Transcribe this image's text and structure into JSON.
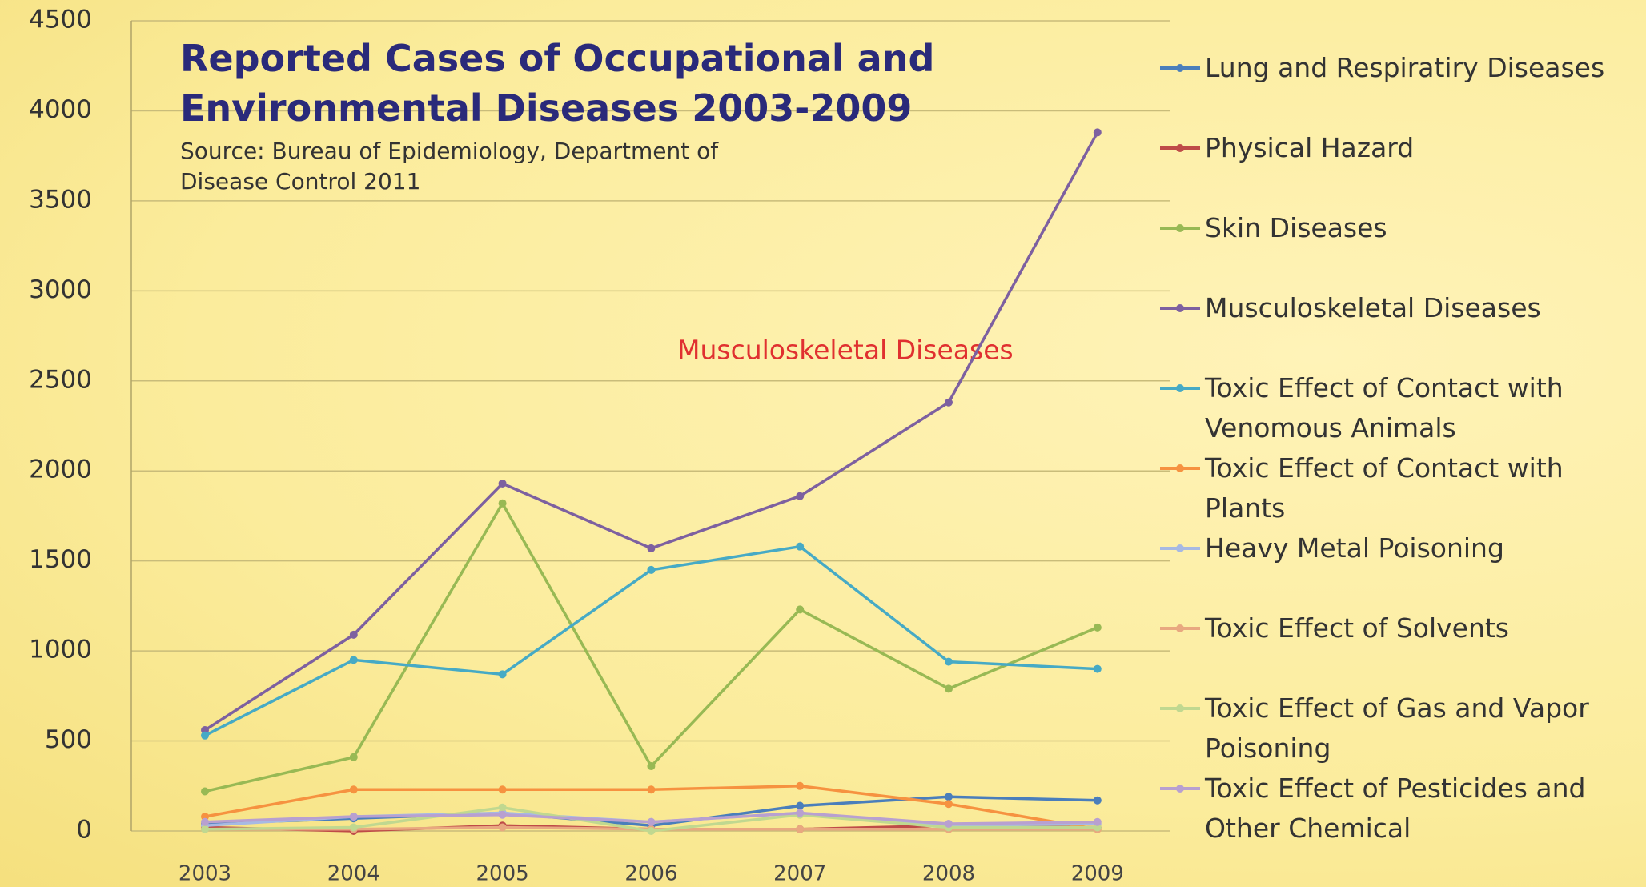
{
  "chart_data": {
    "type": "line",
    "title": "Reported Cases of Occupational and Environmental Diseases 2003-2009",
    "subtitle": "Source: Bureau of Epidemiology, Department of Disease Control 2011",
    "annotation": "Musculoskeletal Diseases",
    "categories": [
      "2003",
      "2004",
      "2005",
      "2006",
      "2007",
      "2008",
      "2009"
    ],
    "ylim": [
      0,
      4500
    ],
    "yticks": [
      0,
      500,
      1000,
      1500,
      2000,
      2500,
      3000,
      3500,
      4000,
      4500
    ],
    "grid": true,
    "legend": "right",
    "series": [
      {
        "name": "Lung and Respiratiry Diseases",
        "color": "#4a7ebb",
        "values": [
          40,
          70,
          100,
          30,
          140,
          190,
          170
        ]
      },
      {
        "name": "Physical Hazard",
        "color": "#be4b48",
        "values": [
          20,
          0,
          30,
          10,
          10,
          30,
          20
        ]
      },
      {
        "name": "Skin Diseases",
        "color": "#98b954",
        "values": [
          220,
          410,
          1820,
          360,
          1230,
          790,
          1130
        ]
      },
      {
        "name": "Musculoskeletal Diseases",
        "color": "#7d60a0",
        "values": [
          560,
          1090,
          1930,
          1570,
          1860,
          2380,
          3880
        ]
      },
      {
        "name": "Toxic Effect of Contact with Venomous Animals",
        "color": "#46aac5",
        "values": [
          530,
          950,
          870,
          1450,
          1580,
          940,
          900
        ]
      },
      {
        "name": "Toxic Effect of Contact with Plants",
        "color": "#f69240",
        "values": [
          80,
          230,
          230,
          230,
          250,
          150,
          10
        ]
      },
      {
        "name": "Heavy Metal Poisoning",
        "color": "#a7b9e3",
        "values": [
          30,
          80,
          100,
          50,
          100,
          30,
          40
        ]
      },
      {
        "name": "Toxic Effect of Solvents",
        "color": "#e8a880",
        "values": [
          10,
          10,
          20,
          10,
          10,
          10,
          10
        ]
      },
      {
        "name": "Toxic Effect of Gas and Vapor Poisoning",
        "color": "#c0d890",
        "values": [
          10,
          20,
          130,
          0,
          90,
          20,
          20
        ]
      },
      {
        "name": "Toxic Effect of Pesticides and Other Chemical",
        "color": "#b8a0d0",
        "values": [
          50,
          80,
          90,
          50,
          100,
          40,
          50
        ]
      }
    ]
  }
}
